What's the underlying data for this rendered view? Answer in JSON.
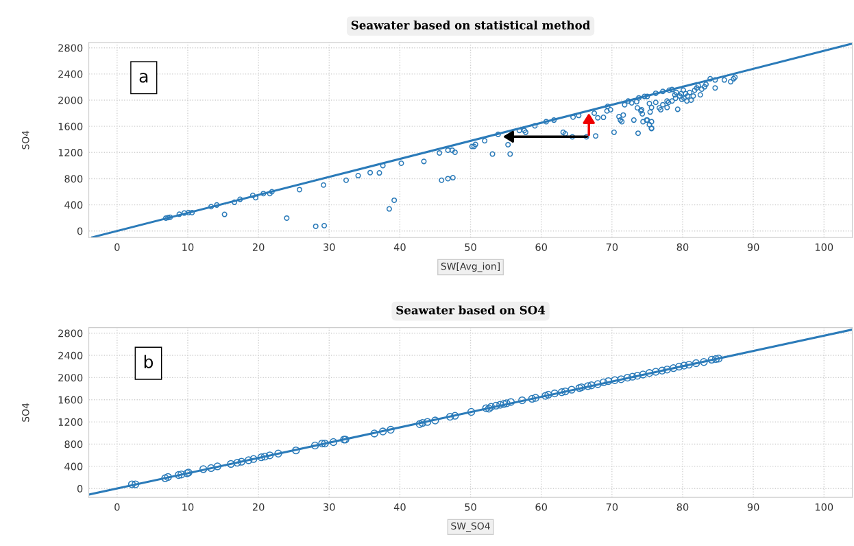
{
  "chart_data": [
    {
      "type": "scatter",
      "title": "Seawater based on statistical method",
      "xlabel": "SW[Avg_ion]",
      "ylabel": "SO4",
      "annotations": [
        "a"
      ],
      "xlim": [
        -4,
        104
      ],
      "ylim": [
        -100,
        2880
      ],
      "xticks": [
        0,
        10,
        20,
        30,
        40,
        50,
        60,
        70,
        80,
        90,
        100
      ],
      "yticks": [
        0,
        400,
        800,
        1200,
        1600,
        2000,
        2400,
        2800
      ],
      "grid": true,
      "series": [
        {
          "marker": "circle",
          "color": "#2b7bb9",
          "x": [
            6.9,
            7.2,
            7.5,
            8.8,
            9.5,
            10.1,
            10.6,
            13.3,
            14.1,
            15.2,
            16.6,
            17.4,
            19.2,
            19.6,
            20.7,
            21.6,
            21.9,
            24.0,
            25.8,
            28.1,
            29.3,
            29.2,
            32.4,
            34.1,
            35.8,
            37.1,
            37.6,
            38.5,
            39.2,
            40.2,
            43.4,
            45.6,
            45.9,
            46.8,
            46.8,
            47.4,
            47.5,
            47.8,
            50.2,
            50.5,
            50.7,
            52.0,
            53.1,
            53.9,
            55.3,
            55.6,
            56.9,
            57.6,
            57.8,
            59.1,
            60.7,
            61.8,
            63.1,
            63.4,
            64.4,
            64.5,
            65.3,
            66.4,
            67.5,
            68.0,
            68.8,
            67.7,
            69.3,
            69.4,
            69.8,
            70.3,
            71.0,
            71.2,
            71.4,
            71.6,
            71.8,
            72.3,
            72.8,
            73.1,
            73.7,
            73.6,
            74.1,
            74.3,
            74.4,
            73.8,
            74.6,
            75.0,
            75.0,
            75.3,
            75.6,
            75.6,
            75.3,
            75.6,
            75.4,
            73.5,
            74.2,
            74.9,
            75.6,
            76.2,
            76.7,
            76.9,
            77.2,
            76.2,
            77.2,
            78.1,
            78.5,
            77.8,
            77.8,
            78.0,
            78.5,
            79.0,
            78.9,
            79.3,
            79.1,
            79.6,
            79.8,
            80.1,
            80.4,
            79.9,
            80.2,
            80.7,
            81.0,
            80.6,
            81.2,
            81.5,
            81.7,
            82.0,
            82.2,
            82.7,
            82.5,
            83.1,
            83.3,
            83.9,
            84.6,
            84.6,
            85.9,
            86.8,
            87.2,
            87.4
          ],
          "values": [
            197,
            205,
            210,
            256,
            274,
            281,
            281,
            372,
            397,
            253,
            439,
            484,
            544,
            509,
            572,
            572,
            600,
            197,
            632,
            71,
            81,
            702,
            776,
            846,
            892,
            888,
            1000,
            337,
            470,
            1035,
            1063,
            1193,
            776,
            800,
            1235,
            1235,
            814,
            1204,
            1292,
            1292,
            1323,
            1379,
            1176,
            1477,
            1319,
            1176,
            1537,
            1537,
            1509,
            1608,
            1671,
            1695,
            1509,
            1485,
            1439,
            1741,
            1766,
            1439,
            1801,
            1730,
            1737,
            1453,
            1835,
            1906,
            1853,
            1509,
            1748,
            1695,
            1671,
            1773,
            1930,
            1987,
            1959,
            1695,
            1495,
            1882,
            1835,
            1790,
            1671,
            2035,
            2057,
            2057,
            1695,
            1625,
            1572,
            1671,
            1948,
            1888,
            1818,
            1976,
            1853,
            1695,
            1565,
            1966,
            1882,
            1853,
            1930,
            2106,
            2134,
            2152,
            2162,
            1987,
            1888,
            1966,
            1987,
            2029,
            2081,
            1860,
            2117,
            2064,
            2099,
            2152,
            2099,
            2011,
            2029,
            2064,
            2117,
            1987,
            2001,
            2064,
            2152,
            2187,
            2222,
            2169,
            2081,
            2204,
            2240,
            2327,
            2309,
            2187,
            2309,
            2282,
            2327,
            2351
          ]
        },
        {
          "type": "line",
          "color": "#2b7bb9",
          "x": [
            -3.5,
            104
          ],
          "values": [
            -96,
            2865
          ]
        }
      ]
    },
    {
      "type": "scatter",
      "title": "Seawater based on SO4",
      "xlabel": "SW_SO4",
      "ylabel": "SO4",
      "annotations": [
        "b"
      ],
      "xlim": [
        -4,
        104
      ],
      "ylim": [
        -160,
        2900
      ],
      "xticks": [
        0,
        10,
        20,
        30,
        40,
        50,
        60,
        70,
        80,
        90,
        100
      ],
      "yticks": [
        0,
        400,
        800,
        1200,
        1600,
        2000,
        2400,
        2800
      ],
      "grid": true,
      "series": [
        {
          "marker": "circle",
          "color": "#2b7bb9",
          "x": [
            2.1,
            2.6,
            6.8,
            7.2,
            8.7,
            9.1,
            9.9,
            10.1,
            12.2,
            13.3,
            14.2,
            16.1,
            17.0,
            17.6,
            18.6,
            19.3,
            20.4,
            20.9,
            21.6,
            22.8,
            25.3,
            28.0,
            29.0,
            29.4,
            30.6,
            32.1,
            32.3,
            36.4,
            37.6,
            38.7,
            42.8,
            43.2,
            43.9,
            45.0,
            47.1,
            47.8,
            50.1,
            52.2,
            52.6,
            52.9,
            53.6,
            54.2,
            54.7,
            55.1,
            55.7,
            57.3,
            58.7,
            59.2,
            60.6,
            61.0,
            61.9,
            62.9,
            63.4,
            64.3,
            65.4,
            65.7,
            66.6,
            67.1,
            68.0,
            68.8,
            69.5,
            70.4,
            71.3,
            72.2,
            72.9,
            73.6,
            74.4,
            75.3,
            76.2,
            77.1,
            77.8,
            78.7,
            79.5,
            80.2,
            80.9,
            81.9,
            83.0,
            84.1,
            84.7,
            85.1
          ],
          "values": [
            76,
            76,
            186,
            208,
            244,
            253,
            275,
            288,
            350,
            368,
            399,
            443,
            465,
            483,
            510,
            532,
            563,
            575,
            598,
            630,
            687,
            775,
            811,
            811,
            837,
            882,
            882,
            992,
            1028,
            1059,
            1161,
            1181,
            1200,
            1226,
            1293,
            1311,
            1381,
            1448,
            1440,
            1471,
            1493,
            1510,
            1524,
            1536,
            1559,
            1590,
            1617,
            1634,
            1670,
            1691,
            1714,
            1736,
            1750,
            1781,
            1812,
            1825,
            1846,
            1860,
            1882,
            1913,
            1936,
            1953,
            1970,
            1998,
            2015,
            2032,
            2055,
            2082,
            2104,
            2125,
            2144,
            2170,
            2197,
            2215,
            2232,
            2259,
            2280,
            2321,
            2334,
            2342
          ]
        },
        {
          "type": "line",
          "color": "#2b7bb9",
          "x": [
            -4,
            104
          ],
          "values": [
            -110,
            2865
          ]
        }
      ]
    }
  ]
}
